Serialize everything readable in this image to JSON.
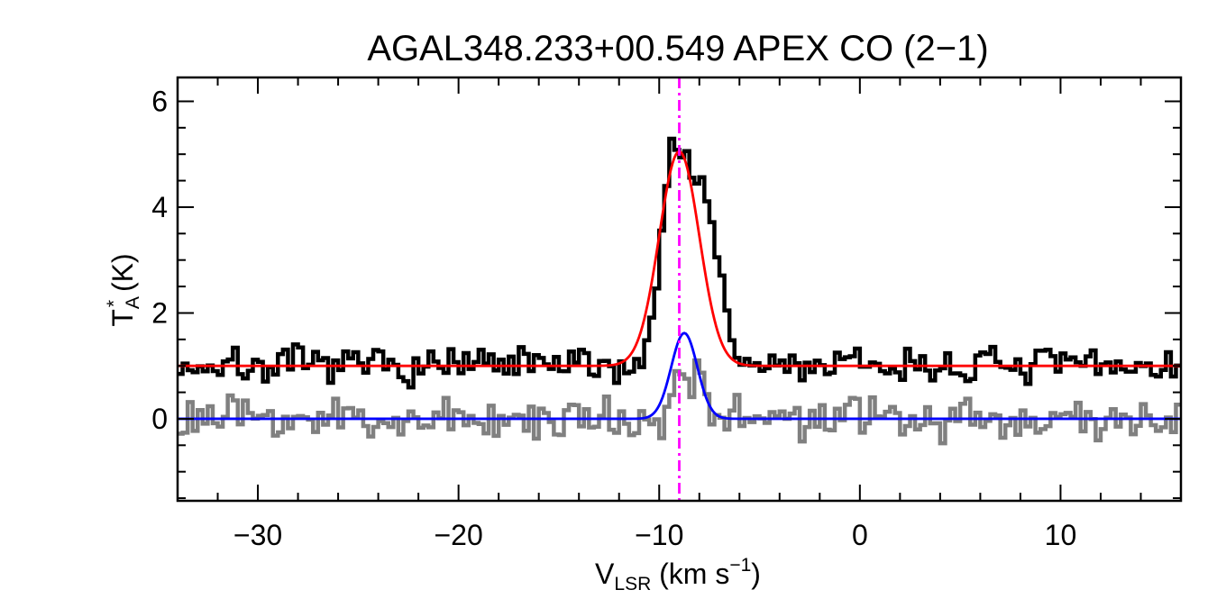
{
  "chart_data": {
    "type": "line",
    "title": "AGAL348.233+00.549  APEX CO (2−1)",
    "xlabel": {
      "main": "V",
      "sub": "LSR",
      "rest": " (km s",
      "sup": "−1",
      "end": ")"
    },
    "ylabel": {
      "main": "T",
      "sub": "A",
      "sup": "*",
      "rest": " (K)"
    },
    "xlim": [
      -34,
      16
    ],
    "ylim": [
      -1.55,
      6.45
    ],
    "xticks": [
      -30,
      -20,
      -10,
      0,
      10
    ],
    "xtick_labels": [
      "−30",
      "−20",
      "−10",
      "0",
      "10"
    ],
    "yticks": [
      0,
      2,
      4,
      6
    ],
    "ytick_labels": [
      "0",
      "2",
      "4",
      "6"
    ],
    "x_minor_step": 2,
    "y_minor_step": 0.5,
    "vline": {
      "x": -9.0,
      "color": "#ff00ff"
    },
    "channel_start": -34,
    "channel_width": 0.25,
    "series": [
      {
        "style": "step",
        "color": "#000000",
        "offset": 1.0,
        "noise_seed": 7,
        "noise_amp": 0.17,
        "components": [
          {
            "center": -9.3,
            "amp": 4.0,
            "sigma": 0.6
          },
          {
            "center": -7.8,
            "amp": 3.3,
            "sigma": 0.7
          }
        ]
      },
      {
        "style": "step",
        "color": "#808080",
        "offset": 0.0,
        "noise_seed": 23,
        "noise_amp": 0.2,
        "components": [
          {
            "center": -8.9,
            "amp": 1.2,
            "sigma": 0.28
          },
          {
            "center": -8.0,
            "amp": 1.1,
            "sigma": 0.28
          }
        ]
      },
      {
        "style": "smooth",
        "color": "#ff0000",
        "offset": 1.0,
        "components": [
          {
            "center": -9.0,
            "amp": 4.05,
            "sigma": 1.0
          }
        ]
      },
      {
        "style": "smooth",
        "color": "#0000ff",
        "offset": 0.0,
        "components": [
          {
            "center": -8.75,
            "amp": 1.62,
            "sigma": 0.65
          }
        ]
      }
    ]
  }
}
